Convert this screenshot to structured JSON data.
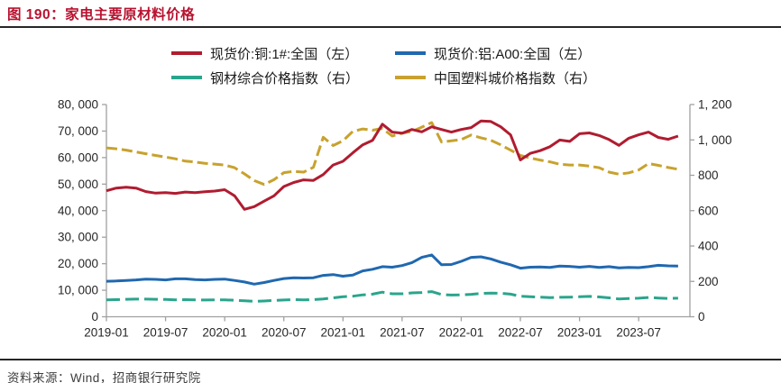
{
  "figure": {
    "title": "图 190：家电主要原材料价格",
    "source": "资料来源：Wind，招商银行研究院"
  },
  "chart_data": {
    "type": "line",
    "title": "家电主要原材料价格",
    "x_start": "2019-01",
    "x_frequency": "monthly",
    "x_tick_labels": [
      "2019-01",
      "2019-07",
      "2020-01",
      "2020-07",
      "2021-01",
      "2021-07",
      "2022-01",
      "2022-07",
      "2023-01",
      "2023-07"
    ],
    "left_axis": {
      "min": 0,
      "max": 80000,
      "tick_labels": [
        "0",
        "10, 000",
        "20, 000",
        "30, 000",
        "40, 000",
        "50, 000",
        "60, 000",
        "70, 000",
        "80, 000"
      ]
    },
    "right_axis": {
      "min": 0,
      "max": 1200,
      "tick_labels": [
        "0",
        "200",
        "400",
        "600",
        "800",
        "1, 000",
        "1, 200"
      ]
    },
    "grid": false,
    "legend_position": "top",
    "series": [
      {
        "name": "现货价:铜:1#:全国（左）",
        "axis": "left",
        "color": "#b01c30",
        "dash": null,
        "values": [
          47500,
          48500,
          48800,
          48500,
          47200,
          46600,
          46800,
          46500,
          47000,
          46800,
          47100,
          47400,
          47900,
          45600,
          40500,
          41500,
          43600,
          45600,
          49100,
          50600,
          51600,
          51400,
          53600,
          57200,
          58600,
          61800,
          64800,
          66500,
          72600,
          69600,
          69200,
          70600,
          69700,
          71600,
          70600,
          69600,
          70600,
          71300,
          73800,
          73600,
          71600,
          68600,
          59100,
          61600,
          62600,
          64100,
          66600,
          66100,
          69000,
          69300,
          68300,
          66800,
          64600,
          67300,
          68600,
          69600,
          67600,
          66900,
          68100
        ]
      },
      {
        "name": "现货价:铝:A00:全国（左）",
        "axis": "left",
        "color": "#2068b0",
        "dash": null,
        "values": [
          13400,
          13500,
          13700,
          13900,
          14200,
          14100,
          13900,
          14300,
          14300,
          14000,
          13900,
          14100,
          14200,
          13700,
          13100,
          12300,
          12900,
          13700,
          14400,
          14700,
          14600,
          14700,
          15600,
          15900,
          15300,
          15700,
          17300,
          17900,
          18900,
          18700,
          19300,
          20400,
          22400,
          23300,
          19600,
          19700,
          20900,
          22400,
          22600,
          21800,
          20600,
          19600,
          18300,
          18700,
          18800,
          18600,
          19100,
          19000,
          18700,
          19000,
          18600,
          18900,
          18400,
          18600,
          18500,
          18900,
          19400,
          19200,
          19100
        ]
      },
      {
        "name": "钢材综合价格指数（右）",
        "axis": "right",
        "color": "#2aa58c",
        "dash": [
          15,
          6
        ],
        "values": [
          96,
          97,
          99,
          100,
          100,
          99,
          98,
          96,
          97,
          96,
          95,
          96,
          96,
          93,
          90,
          87,
          89,
          92,
          95,
          97,
          96,
          97,
          101,
          107,
          113,
          116,
          124,
          128,
          139,
          130,
          130,
          135,
          137,
          142,
          126,
          123,
          124,
          127,
          132,
          134,
          133,
          128,
          116,
          113,
          111,
          108,
          110,
          111,
          113,
          115,
          112,
          107,
          101,
          103,
          105,
          109,
          106,
          104,
          105
        ]
      },
      {
        "name": "中国塑料城价格指数（右）",
        "axis": "right",
        "color": "#c8a22e",
        "dash": [
          12,
          5
        ],
        "values": [
          955,
          950,
          942,
          932,
          922,
          912,
          903,
          893,
          880,
          875,
          868,
          863,
          858,
          843,
          808,
          770,
          748,
          775,
          815,
          822,
          818,
          845,
          1015,
          968,
          995,
          1048,
          1062,
          1055,
          1065,
          1022,
          1038,
          1048,
          1072,
          1098,
          988,
          995,
          1002,
          1028,
          1012,
          998,
          972,
          942,
          912,
          898,
          886,
          876,
          862,
          858,
          858,
          852,
          843,
          818,
          806,
          814,
          830,
          866,
          856,
          844,
          834
        ]
      }
    ]
  }
}
